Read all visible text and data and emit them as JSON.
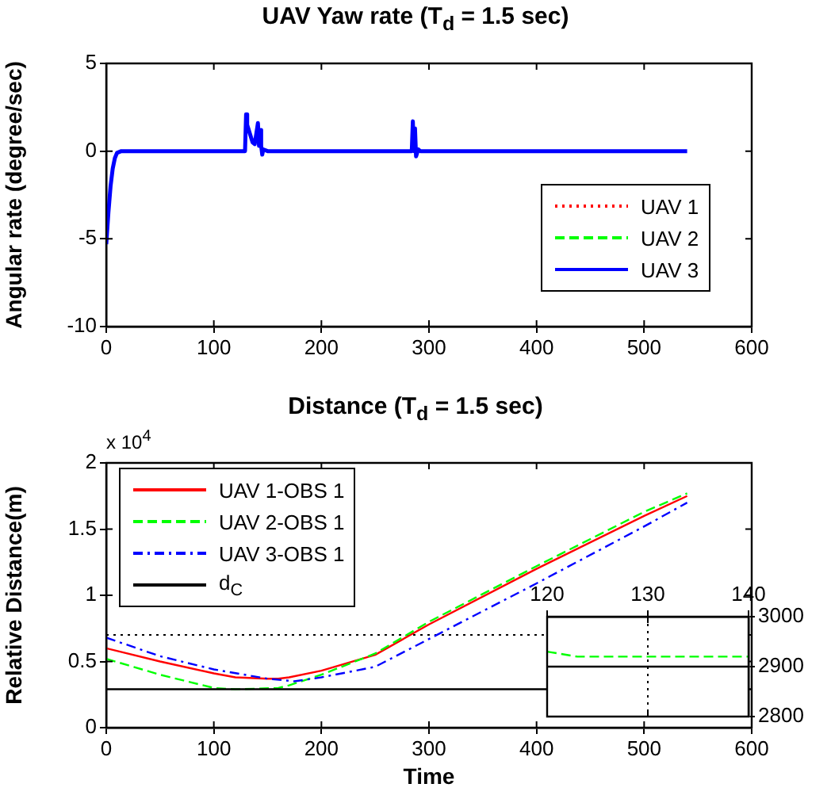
{
  "chart_data": [
    {
      "type": "line",
      "title": "UAV Yaw rate (T$_{d}$ = 1.5 sec)",
      "ylabel": "Angular rate (degree/sec)",
      "xlim": [
        0,
        600
      ],
      "xticks": [
        0,
        100,
        200,
        300,
        400,
        500,
        600
      ],
      "ylim": [
        -10,
        5
      ],
      "yticks": [
        -10,
        -5,
        0,
        5
      ],
      "legend": "bottom right",
      "marker": "none",
      "series": [
        {
          "name": "UAV 1",
          "color": "#ff0000",
          "line_style": "dotted"
        },
        {
          "name": "UAV 2",
          "color": "#00ff00",
          "line_style": "dashed"
        },
        {
          "name": "UAV 3",
          "color": "#0000ff",
          "line_style": "solid",
          "x": [
            0,
            2,
            4,
            6,
            8,
            10,
            14,
            129,
            130,
            131,
            136,
            138,
            141,
            142,
            143,
            144,
            145,
            146,
            150,
            284,
            285,
            286,
            287,
            288,
            290,
            292,
            540
          ],
          "values": [
            -5.3,
            -3.5,
            -2,
            -1,
            -0.4,
            -0.1,
            0,
            0,
            2.1,
            1.5,
            0.5,
            0.4,
            1.6,
            0.3,
            1.2,
            0.3,
            -0.2,
            0.1,
            0,
            0,
            1.7,
            0,
            1.3,
            -0.3,
            0.1,
            0,
            0
          ]
        }
      ]
    },
    {
      "type": "line",
      "title": "Distance (T$_{d}$ = 1.5 sec)",
      "xlabel": "Time",
      "ylabel": "Relative Distance(m)",
      "annotations": [
        "x 10$^{4}$"
      ],
      "xlim": [
        0,
        600
      ],
      "xticks": [
        0,
        100,
        200,
        300,
        400,
        500,
        600
      ],
      "ylim": [
        0,
        2
      ],
      "yticks": [
        0,
        0.5,
        1,
        1.5,
        2
      ],
      "legend": "top left",
      "marker": "none",
      "ref_lines": [
        {
          "axis": "y",
          "value": 0.7,
          "line_style": "dotted",
          "color": "#000000"
        }
      ],
      "series": [
        {
          "name": "UAV 1-OBS 1",
          "color": "#ff0000",
          "line_style": "solid",
          "x": [
            0,
            50,
            100,
            120,
            150,
            160,
            170,
            200,
            250,
            300,
            400,
            500,
            540
          ],
          "values": [
            0.6,
            0.5,
            0.41,
            0.38,
            0.37,
            0.37,
            0.38,
            0.43,
            0.55,
            0.78,
            1.2,
            1.6,
            1.75
          ]
        },
        {
          "name": "UAV 2-OBS 1",
          "color": "#00ff00",
          "line_style": "dashed",
          "x": [
            0,
            50,
            100,
            120,
            160,
            170,
            200,
            250,
            300,
            400,
            500,
            540
          ],
          "values": [
            0.52,
            0.4,
            0.3,
            0.29,
            0.3,
            0.32,
            0.4,
            0.56,
            0.8,
            1.22,
            1.63,
            1.77
          ]
        },
        {
          "name": "UAV 3-OBS 1",
          "color": "#0000ff",
          "line_style": "dashdot",
          "x": [
            0,
            50,
            100,
            150,
            175,
            200,
            250,
            300,
            400,
            500,
            540
          ],
          "values": [
            0.68,
            0.54,
            0.44,
            0.37,
            0.35,
            0.38,
            0.46,
            0.67,
            1.09,
            1.52,
            1.7
          ]
        },
        {
          "name": "d$_{C}$",
          "color": "#000000",
          "line_style": "solid",
          "x": [
            0,
            600
          ],
          "values": [
            0.29,
            0.29
          ]
        }
      ]
    },
    {
      "type": "line",
      "xlim": [
        120,
        140
      ],
      "xticks": [
        120,
        130,
        140
      ],
      "ylim": [
        2800,
        3000
      ],
      "yticks": [
        2800,
        2900,
        3000
      ],
      "marker": "none",
      "ref_lines": [
        {
          "axis": "x",
          "value": 130,
          "line_style": "dotted",
          "color": "#000000"
        }
      ],
      "series": [
        {
          "color": "#00ff00",
          "line_style": "dashed",
          "x": [
            120,
            123,
            127,
            137,
            138,
            140
          ],
          "values": [
            2930,
            2920,
            2920,
            2920,
            2920,
            2920
          ]
        },
        {
          "color": "#000000",
          "line_style": "solid",
          "x": [
            120,
            140
          ],
          "values": [
            2900,
            2900
          ]
        }
      ]
    }
  ]
}
